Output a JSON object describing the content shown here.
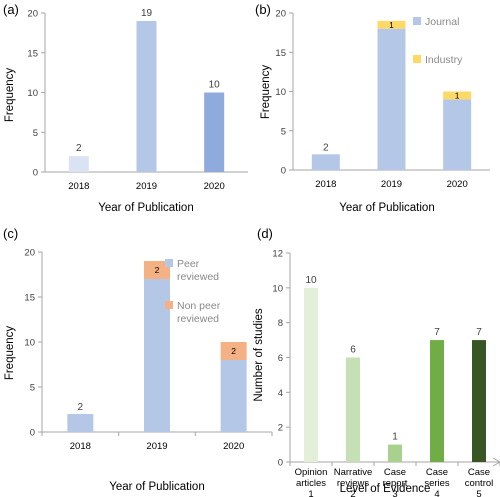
{
  "chart_data": [
    {
      "panel": "(a)",
      "type": "bar",
      "categories": [
        "2018",
        "2019",
        "2020"
      ],
      "values": [
        2,
        19,
        10
      ],
      "data_labels": [
        "2",
        "19",
        "10"
      ],
      "colors": [
        "#dae3f3",
        "#b4c7e7",
        "#8faadc"
      ],
      "xlabel": "Year of Publication",
      "ylabel": "Frequency",
      "ylim": [
        0,
        20
      ],
      "yticks": [
        "0",
        "5",
        "10",
        "15",
        "20"
      ],
      "grid": false
    },
    {
      "panel": "(b)",
      "type": "bar",
      "stacked": true,
      "categories": [
        "2018",
        "2019",
        "2020"
      ],
      "series": [
        {
          "name": "Journal",
          "values": [
            2,
            18,
            9
          ],
          "color": "#b4c7e7",
          "labels": [
            "2",
            "",
            ""
          ]
        },
        {
          "name": "Industry",
          "values": [
            0,
            1,
            1
          ],
          "color": "#ffd966",
          "labels": [
            "",
            "1",
            "1"
          ]
        }
      ],
      "xlabel": "Year of Publication",
      "ylabel": "Frequency",
      "ylim": [
        0,
        20
      ],
      "yticks": [
        "0",
        "5",
        "10",
        "15",
        "20"
      ],
      "legend": "top-right",
      "grid": false
    },
    {
      "panel": "(c)",
      "type": "bar",
      "stacked": true,
      "categories": [
        "2018",
        "2019",
        "2020"
      ],
      "series": [
        {
          "name": "Peer reviewed",
          "legend_lines": [
            "Peer",
            "reviewed"
          ],
          "values": [
            2,
            17,
            8
          ],
          "color": "#b4c7e7",
          "labels": [
            "2",
            "",
            ""
          ]
        },
        {
          "name": "Non peer reviewed",
          "legend_lines": [
            "Non peer",
            "reviewed"
          ],
          "values": [
            0,
            2,
            2
          ],
          "color": "#f4b183",
          "labels": [
            "",
            "2",
            "2"
          ]
        }
      ],
      "xlabel": "Year of Publication",
      "ylabel": "Frequency",
      "ylim": [
        0,
        20
      ],
      "yticks": [
        "0",
        "5",
        "10",
        "15",
        "20"
      ],
      "legend": "top-right",
      "grid": false
    },
    {
      "panel": "(d)",
      "type": "bar",
      "categories": [
        [
          "Opinion",
          "articles",
          "1"
        ],
        [
          "Narrative",
          "reviews",
          "2"
        ],
        [
          "Case",
          "report",
          "3"
        ],
        [
          "Case",
          "series",
          "4"
        ],
        [
          "Case",
          "control",
          "5"
        ]
      ],
      "values": [
        10,
        6,
        1,
        7,
        7
      ],
      "data_labels": [
        "10",
        "6",
        "1",
        "7",
        "7"
      ],
      "colors": [
        "#e2f0d9",
        "#c5e0b4",
        "#a9d18e",
        "#70ad47",
        "#375623"
      ],
      "xlabel": "Level of Evidence",
      "ylabel": "Number of studies",
      "ylim": [
        0,
        12
      ],
      "yticks": [
        "0",
        "2",
        "4",
        "6",
        "8",
        "10",
        "12"
      ],
      "grid": false
    }
  ]
}
